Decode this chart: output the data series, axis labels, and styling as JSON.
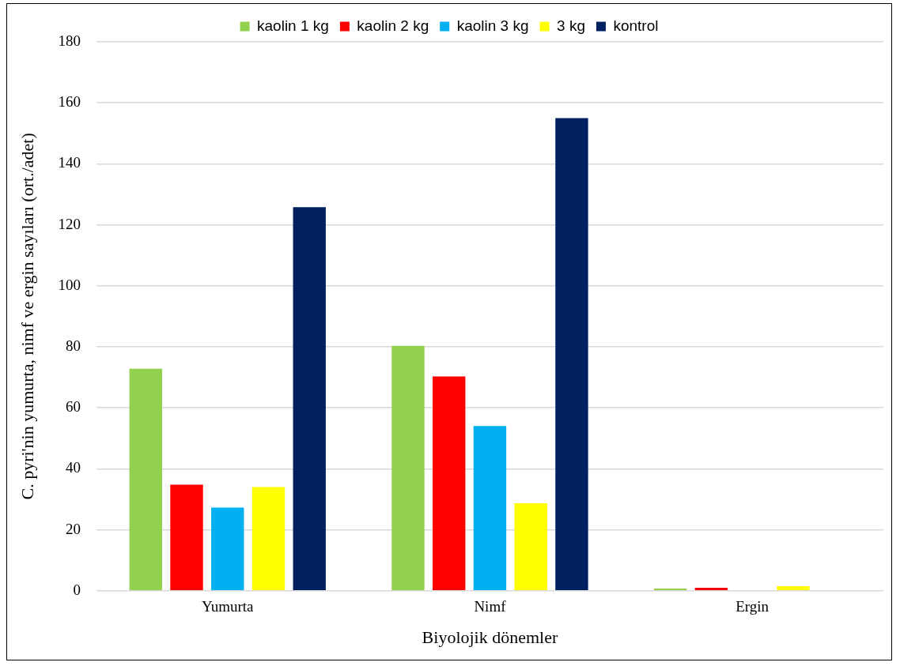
{
  "chart_data": {
    "type": "bar",
    "xlabel": "Biyolojik dönemler",
    "ylabel": "C. pyri'nin yumurta, nimf ve ergin sayıları (ort./adet)",
    "categories": [
      "Yumurta",
      "Nimf",
      "Ergin"
    ],
    "series": [
      {
        "name": "kaolin 1 kg",
        "color": "#92d050",
        "values": [
          72.8,
          80.3,
          0.7
        ]
      },
      {
        "name": "kaolin 2 kg",
        "color": "#ff0000",
        "values": [
          34.8,
          70.3,
          1.0
        ]
      },
      {
        "name": "kaolin 3 kg",
        "color": "#00b0f0",
        "values": [
          27.3,
          54,
          null
        ]
      },
      {
        "name": "3 kg",
        "color": "#ffff00",
        "values": [
          34,
          28.7,
          1.5
        ]
      },
      {
        "name": "kontrol",
        "color": "#002060",
        "values": [
          125.8,
          155,
          0
        ]
      }
    ],
    "ylim": [
      0,
      180
    ],
    "yticks": [
      0,
      20,
      40,
      60,
      80,
      100,
      120,
      140,
      160,
      180
    ],
    "grid": "y",
    "legend": "top"
  }
}
